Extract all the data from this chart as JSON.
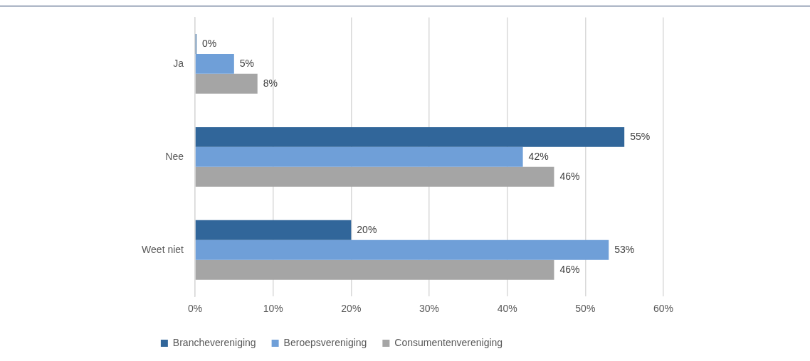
{
  "chart_data": {
    "type": "bar",
    "orientation": "horizontal",
    "categories": [
      "Ja",
      "Nee",
      "Weet niet"
    ],
    "series": [
      {
        "name": "Branchevereniging",
        "color": "#31669a",
        "values": [
          0,
          55,
          20
        ],
        "value_labels": [
          "0%",
          "55%",
          "20%"
        ]
      },
      {
        "name": "Beroepsvereniging",
        "color": "#6f9fd8",
        "values": [
          5,
          42,
          53
        ],
        "value_labels": [
          "5%",
          "42%",
          "53%"
        ]
      },
      {
        "name": "Consumentenvereniging",
        "color": "#a5a5a5",
        "values": [
          8,
          46,
          46
        ],
        "value_labels": [
          "8%",
          "46%",
          "46%"
        ]
      }
    ],
    "xlim": [
      0,
      60
    ],
    "xticks": [
      {
        "value": 0,
        "label": "0%"
      },
      {
        "value": 10,
        "label": "10%"
      },
      {
        "value": 20,
        "label": "20%"
      },
      {
        "value": 30,
        "label": "30%"
      },
      {
        "value": 40,
        "label": "40%"
      },
      {
        "value": 50,
        "label": "50%"
      },
      {
        "value": 60,
        "label": "60%"
      }
    ],
    "grid": "x",
    "legend": "bottom"
  }
}
